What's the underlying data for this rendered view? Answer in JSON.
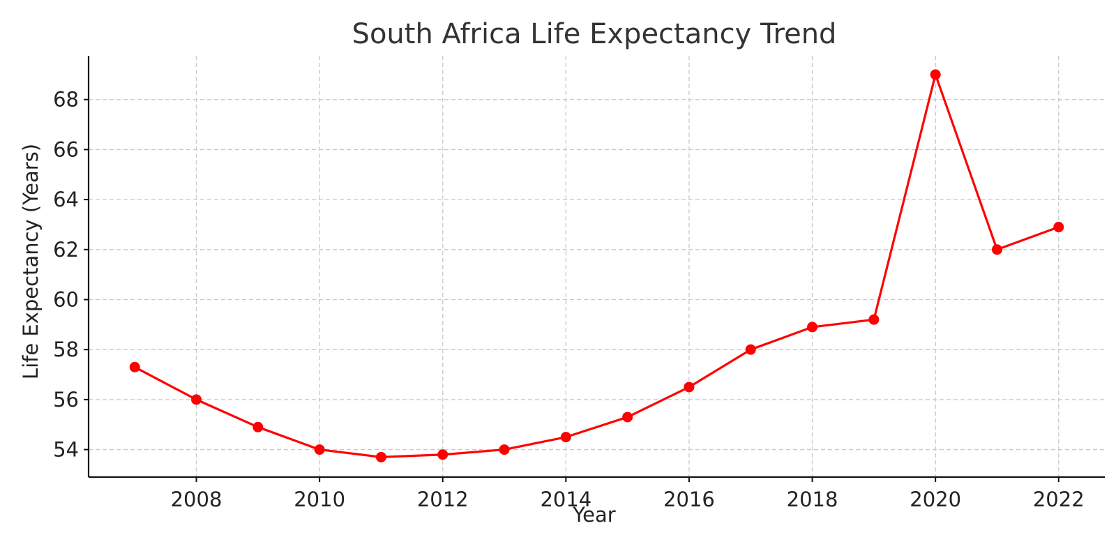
{
  "chart_data": {
    "type": "line",
    "title": "South Africa Life Expectancy Trend",
    "xlabel": "Year",
    "ylabel": "Life Expectancy (Years)",
    "x": [
      2007,
      2008,
      2009,
      2010,
      2011,
      2012,
      2013,
      2014,
      2015,
      2016,
      2017,
      2018,
      2019,
      2020,
      2021,
      2022
    ],
    "series": [
      {
        "values": [
          57.3,
          56.0,
          54.9,
          54.0,
          53.7,
          53.8,
          54.0,
          54.5,
          55.3,
          56.5,
          58.0,
          58.9,
          59.2,
          69.0,
          62.0,
          62.9
        ],
        "color": "#ff0000",
        "marker": "circle"
      }
    ],
    "xticks": [
      2008,
      2010,
      2012,
      2014,
      2016,
      2018,
      2020,
      2022
    ],
    "yticks": [
      54,
      56,
      58,
      60,
      62,
      64,
      66,
      68
    ],
    "xlim": [
      2006.25,
      2022.75
    ],
    "ylim": [
      52.9,
      69.75
    ],
    "grid": true,
    "legend": "none"
  }
}
